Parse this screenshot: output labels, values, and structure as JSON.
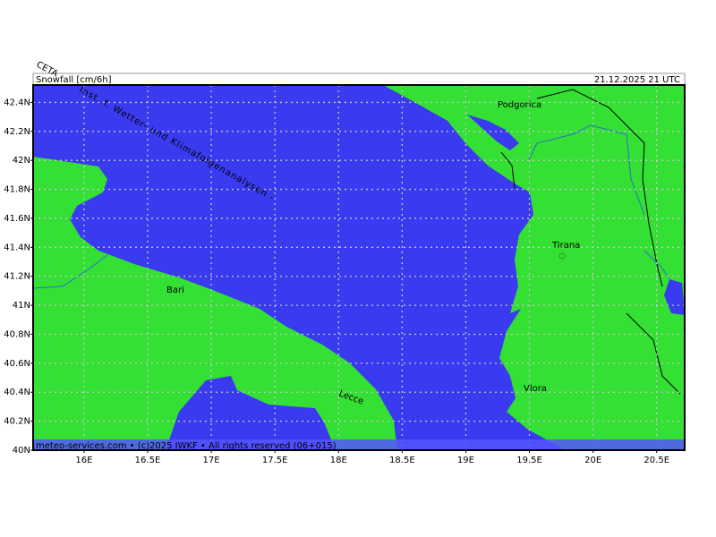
{
  "header": {
    "title": "Snowfall [cm/6h]",
    "valid_time": "21.12.2025 21 UTC",
    "corner_tag": "CETA"
  },
  "watermark": "Inst. f. Wetter- und Klimafolgenanalysen -",
  "map": {
    "lat_lim": [
      40,
      42.52
    ],
    "lon_lim": [
      15.6,
      20.72
    ],
    "lat_ticks": [
      {
        "value": 40,
        "label": "40N"
      },
      {
        "value": 40.2,
        "label": "40.2N"
      },
      {
        "value": 40.4,
        "label": "40.4N"
      },
      {
        "value": 40.6,
        "label": "40.6N"
      },
      {
        "value": 40.8,
        "label": "40.8N"
      },
      {
        "value": 41,
        "label": "41N"
      },
      {
        "value": 41.2,
        "label": "41.2N"
      },
      {
        "value": 41.4,
        "label": "41.4N"
      },
      {
        "value": 41.6,
        "label": "41.6N"
      },
      {
        "value": 41.8,
        "label": "41.8N"
      },
      {
        "value": 42,
        "label": "42N"
      },
      {
        "value": 42.2,
        "label": "42.2N"
      },
      {
        "value": 42.4,
        "label": "42.4N"
      }
    ],
    "lon_ticks": [
      {
        "value": 16,
        "label": "16E"
      },
      {
        "value": 16.5,
        "label": "16.5E"
      },
      {
        "value": 17,
        "label": "17E"
      },
      {
        "value": 17.5,
        "label": "17.5E"
      },
      {
        "value": 18,
        "label": "18E"
      },
      {
        "value": 18.5,
        "label": "18.5E"
      },
      {
        "value": 19,
        "label": "19E"
      },
      {
        "value": 19.5,
        "label": "19.5E"
      },
      {
        "value": 20,
        "label": "20E"
      },
      {
        "value": 20.5,
        "label": "20.5E"
      }
    ],
    "cities": [
      "Podgorica",
      "Tirana",
      "Bari",
      "Lecce",
      "Vlora"
    ]
  },
  "footer": "meteo-services.com • (c)2025 IWKF • All rights reserved (06+015)"
}
